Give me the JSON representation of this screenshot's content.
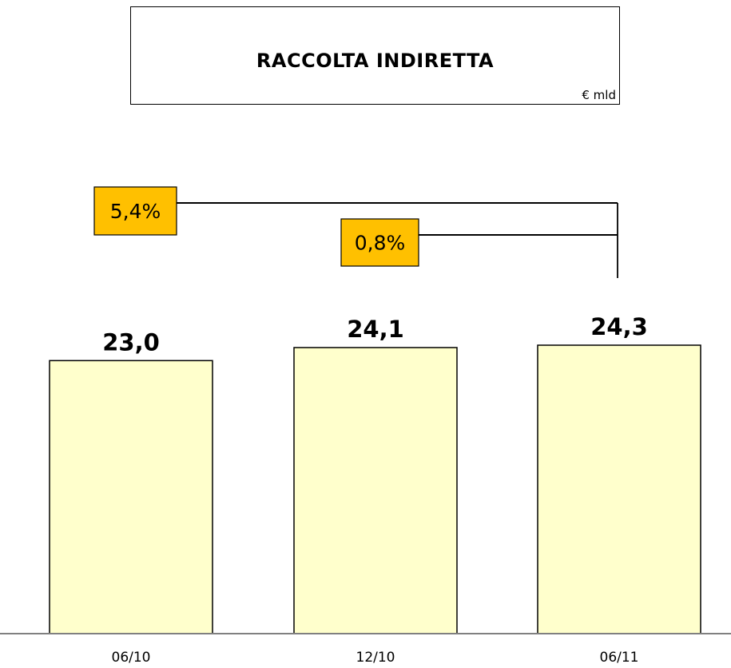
{
  "header": {
    "title": "RACCOLTA INDIRETTA",
    "unit": "€ mld"
  },
  "colors": {
    "bar_fill": "#ffffcc",
    "bar_stroke": "#000000",
    "growth_box_fill": "#ffc000",
    "axis": "#808080"
  },
  "chart_data": {
    "type": "bar",
    "title": "RACCOLTA INDIRETTA",
    "ylabel": "€ mld",
    "categories": [
      "06/10",
      "12/10",
      "06/11"
    ],
    "values": [
      23.0,
      24.1,
      24.3
    ],
    "value_labels": [
      "23,0",
      "24,1",
      "24,3"
    ],
    "ylim": [
      0,
      24.3
    ],
    "grid": false,
    "legend": "none",
    "annotations": [
      {
        "label": "5,4%",
        "from": "06/10",
        "to": "06/11"
      },
      {
        "label": "0,8%",
        "from": "12/10",
        "to": "06/11"
      }
    ]
  }
}
